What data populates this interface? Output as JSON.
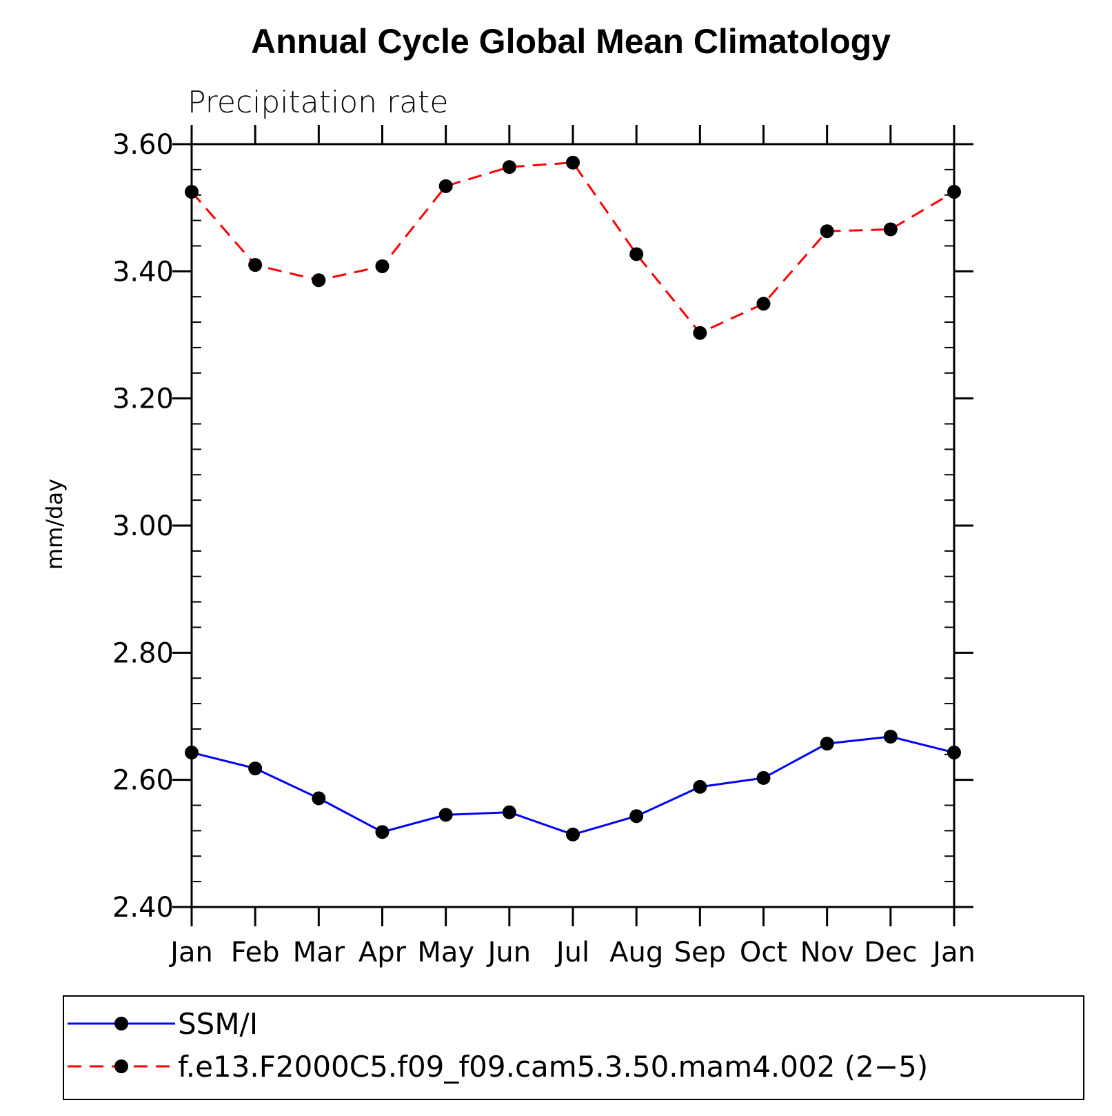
{
  "chart_data": {
    "type": "line",
    "title": "Annual Cycle Global Mean Climatology",
    "subtitle": "Precipitation rate",
    "xlabel": "",
    "ylabel": "mm/day",
    "categories": [
      "Jan",
      "Feb",
      "Mar",
      "Apr",
      "May",
      "Jun",
      "Jul",
      "Aug",
      "Sep",
      "Oct",
      "Nov",
      "Dec",
      "Jan"
    ],
    "ylim": [
      2.4,
      3.6
    ],
    "yticks": [
      "2.40",
      "2.60",
      "2.80",
      "3.00",
      "3.20",
      "3.40",
      "3.60"
    ],
    "grid": false,
    "legend_position": "bottom",
    "series": [
      {
        "name": "SSM/I",
        "color": "#0000ff",
        "line_style": "solid",
        "marker": "filled-circle",
        "values": [
          2.643,
          2.618,
          2.571,
          2.518,
          2.545,
          2.549,
          2.514,
          2.543,
          2.589,
          2.603,
          2.657,
          2.668,
          2.643
        ]
      },
      {
        "name": "f.e13.F2000C5.f09_f09.cam5.3.50.mam4.002 (2−5)",
        "color": "#ff0000",
        "line_style": "dashed",
        "marker": "filled-circle",
        "values": [
          3.525,
          3.41,
          3.386,
          3.408,
          3.534,
          3.564,
          3.571,
          3.427,
          3.303,
          3.349,
          3.463,
          3.466,
          3.525
        ]
      }
    ]
  }
}
